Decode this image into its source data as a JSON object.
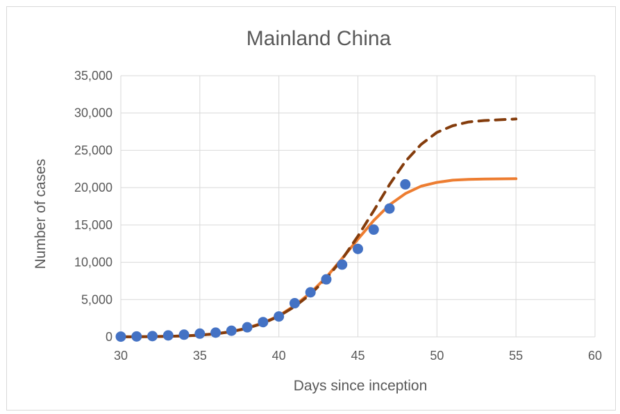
{
  "chart_data": {
    "type": "scatter",
    "title": "Mainland China",
    "xlabel": "Days since inception",
    "ylabel": "Number of cases",
    "xlim": [
      30,
      60
    ],
    "ylim": [
      0,
      35000
    ],
    "x_ticks": [
      "30",
      "35",
      "40",
      "45",
      "50",
      "55",
      "60"
    ],
    "y_ticks": [
      "0",
      "5,000",
      "10,000",
      "15,000",
      "20,000",
      "25,000",
      "30,000",
      "35,000"
    ],
    "grid": true,
    "legend": "none",
    "series": [
      {
        "kind": "scatter",
        "color": "#4472c4",
        "x": [
          30,
          31,
          32,
          33,
          34,
          35,
          36,
          37,
          38,
          39,
          40,
          41,
          42,
          43,
          44,
          45,
          46,
          47,
          48
        ],
        "y": [
          40,
          60,
          110,
          200,
          300,
          440,
          570,
          830,
          1290,
          1980,
          2740,
          4510,
          5970,
          7710,
          9690,
          11790,
          14380,
          17200,
          20440
        ]
      },
      {
        "kind": "line",
        "style": "solid",
        "color": "#ed7d31",
        "x": [
          30,
          31,
          32,
          33,
          34,
          35,
          36,
          37,
          38,
          39,
          40,
          41,
          42,
          43,
          44,
          45,
          46,
          47,
          48,
          49,
          50,
          51,
          52,
          53,
          54,
          55
        ],
        "y": [
          10,
          20,
          40,
          70,
          130,
          240,
          420,
          720,
          1190,
          1880,
          2840,
          4200,
          5900,
          8000,
          10500,
          13100,
          15600,
          17700,
          19200,
          20200,
          20700,
          21000,
          21100,
          21150,
          21180,
          21200
        ]
      },
      {
        "kind": "line",
        "style": "dashed",
        "color": "#843c0c",
        "x": [
          30,
          31,
          32,
          33,
          34,
          35,
          36,
          37,
          38,
          39,
          40,
          41,
          42,
          43,
          44,
          45,
          46,
          47,
          48,
          49,
          50,
          51,
          52,
          53,
          54,
          55
        ],
        "y": [
          10,
          20,
          40,
          70,
          130,
          240,
          410,
          700,
          1150,
          1820,
          2780,
          4060,
          5720,
          7820,
          10400,
          13500,
          16900,
          20400,
          23500,
          25800,
          27400,
          28300,
          28800,
          29000,
          29100,
          29200
        ]
      }
    ]
  }
}
